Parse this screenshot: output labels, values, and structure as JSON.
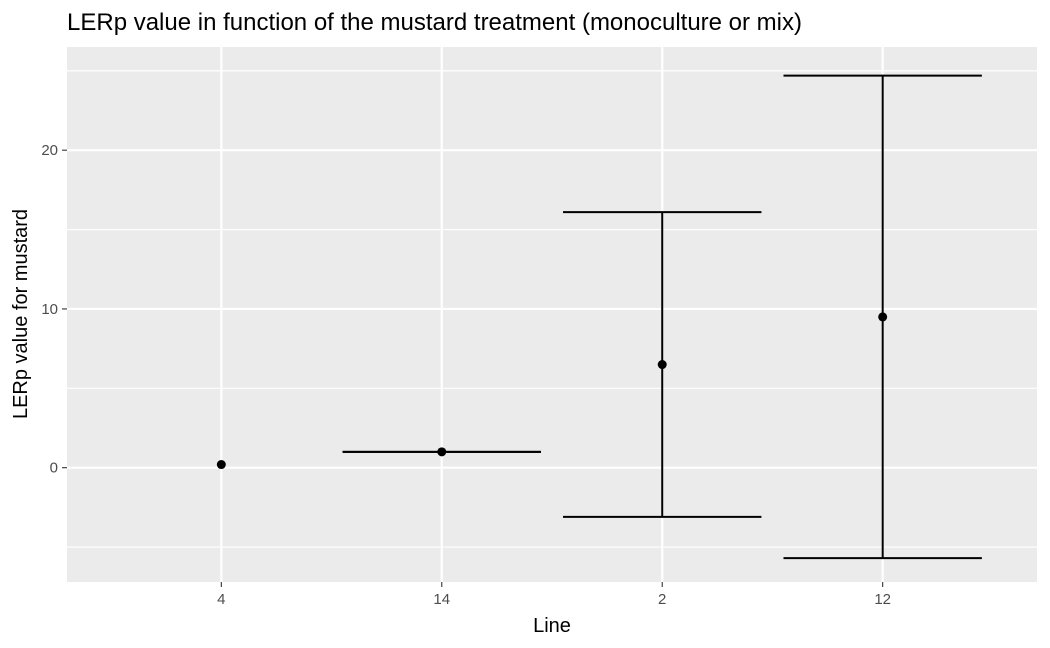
{
  "chart_data": {
    "type": "scatter",
    "title": "LERp value in function of the mustard treatment (monoculture or mix)",
    "xlabel": "Line",
    "ylabel": "LERp value for mustard",
    "categories": [
      "4",
      "14",
      "2",
      "12"
    ],
    "ylim": [
      -7.2,
      26.5
    ],
    "yticks": [
      0,
      10,
      20
    ],
    "grid": true,
    "points": [
      {
        "x": "4",
        "y": 0.2,
        "lower": null,
        "upper": null
      },
      {
        "x": "14",
        "y": 1.0,
        "lower": 1.0,
        "upper": 1.0
      },
      {
        "x": "2",
        "y": 6.5,
        "lower": -3.1,
        "upper": 16.1
      },
      {
        "x": "12",
        "y": 9.5,
        "lower": -5.7,
        "upper": 24.7
      }
    ],
    "colors": {
      "panel_background": "#ebebeb",
      "grid_major": "#ffffff",
      "point": "#000000",
      "errorbar": "#000000"
    }
  }
}
